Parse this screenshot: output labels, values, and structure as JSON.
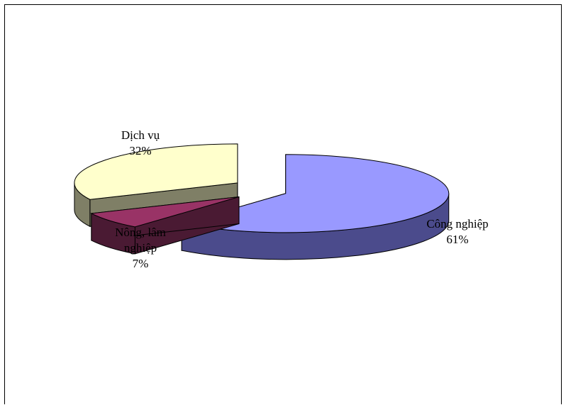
{
  "chart_data": {
    "type": "pie",
    "style": "3d-exploded",
    "title": "",
    "legend": "none",
    "slices": [
      {
        "label_lines": [
          "Công nghiệp"
        ],
        "label": "Công nghiệp",
        "value": 61,
        "value_label": "61%",
        "color": "#9999FF",
        "side_color": "#4B4B8C"
      },
      {
        "label_lines": [
          "Nông, lâm",
          "nghiệp"
        ],
        "label": "Nông, lâm nghiệp",
        "value": 7,
        "value_label": "7%",
        "color": "#993366",
        "side_color": "#4A1A33"
      },
      {
        "label_lines": [
          "Dịch vụ"
        ],
        "label": "Dịch vụ",
        "value": 32,
        "value_label": "32%",
        "color": "#FFFFCC",
        "side_color": "#7F7F66"
      }
    ]
  }
}
